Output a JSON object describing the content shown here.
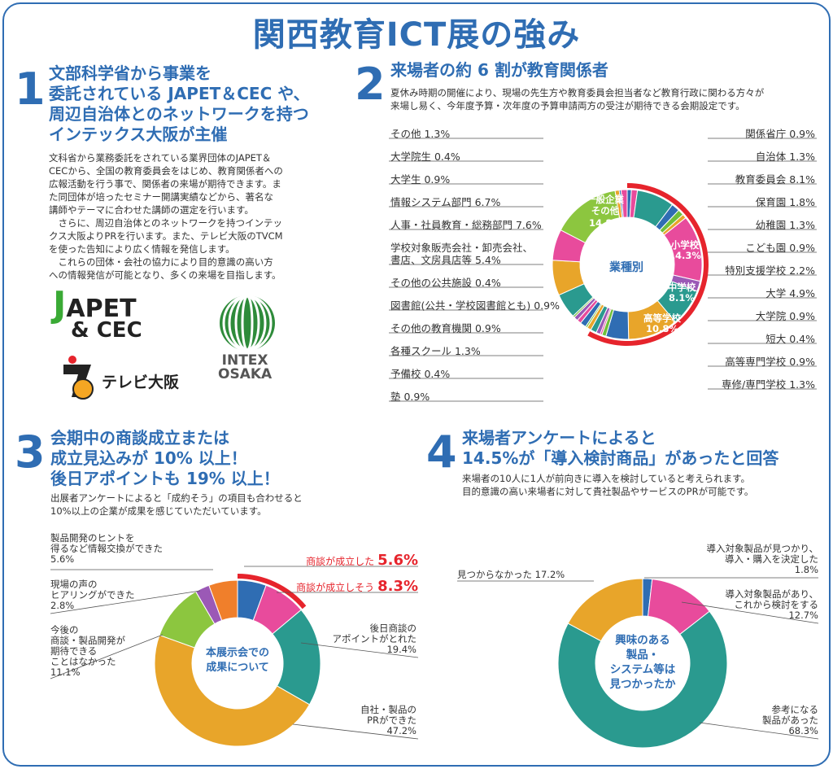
{
  "title": "関西教育ICT展の強み",
  "s1": {
    "num": "1",
    "head": [
      "文部科学省から事業を",
      "委託されている JAPET＆CEC や、",
      "周辺自治体とのネットワークを持つ",
      "インテックス大阪が主催"
    ],
    "body": [
      "文科省から業務委託をされている業界団体のJAPET＆",
      "CECから、全国の教育委員会をはじめ、教育関係者への",
      "広報活動を行う事で、関係者の来場が期待できます。ま",
      "た同団体が培ったセミナー開講実績などから、著名な",
      "講師やテーマに合わせた講師の選定を行います。",
      "　さらに、周辺自治体とのネットワークを持つインテッ",
      "クス大阪よりPRを行います。また、テレビ大阪のTVCM",
      "を使った告知により広く情報を発信します。",
      "　これらの団体・会社の協力により目的意識の高い方",
      "への情報発信が可能となり、多くの来場を目指します。"
    ],
    "logo_japet_1": "APET",
    "logo_japet_2": "& CEC",
    "logo_j": "J",
    "logo_intex": [
      "INTEX",
      "OSAKA"
    ],
    "logo_tv": "テレビ大阪"
  },
  "s2": {
    "num": "2",
    "head": "来場者の約 6 割が教育関係者",
    "body": [
      "夏休み時期の開催により、現場の先生方や教育委員会担当者など教育行政に関わる方々が",
      "来場し易く、今年度予算・次年度の予算申請両方の受注が期待できる会期設定です。"
    ],
    "center": "業種別"
  },
  "s3": {
    "num": "3",
    "head": [
      "会期中の商談成立または",
      "成立見込みが 10% 以上！",
      "後日アポイントも 19% 以上！"
    ],
    "body": [
      "出展者アンケートによると「成約そう」の項目も合わせると",
      "10%以上の企業が成果を感じていただいています。"
    ],
    "center": [
      "本展示会での",
      "成果について"
    ],
    "callout1_label": "商談が成立した",
    "callout1_value": "5.6%",
    "callout2_label": "商談が成立しそう",
    "callout2_value": "8.3%"
  },
  "s4": {
    "num": "4",
    "head": [
      "来場者アンケートによると",
      "14.5%が「導入検討商品」があったと回答"
    ],
    "body": [
      "来場者の10人に1人が前向きに導入を検討していると考えられます。",
      "目的意識の高い来場者に対して貴社製品やサービスのPRが可能です。"
    ],
    "center": [
      "興味のある",
      "製品・",
      "システム等は",
      "見つかったか"
    ]
  },
  "chart_data": [
    {
      "type": "pie",
      "title": "業種別",
      "slices": [
        {
          "label": "関係省庁",
          "value": 0.9,
          "color": "#2f6db3"
        },
        {
          "label": "自治体",
          "value": 1.3,
          "color": "#e84b9c"
        },
        {
          "label": "教育委員会",
          "value": 8.1,
          "color": "#2a9a8f"
        },
        {
          "label": "保育園",
          "value": 1.8,
          "color": "#2f6db3"
        },
        {
          "label": "幼稚園",
          "value": 1.3,
          "color": "#6fbf3a"
        },
        {
          "label": "こども園",
          "value": 0.9,
          "color": "#e8a52a"
        },
        {
          "label": "小学校",
          "value": 14.3,
          "color": "#e84b9c"
        },
        {
          "label": "特別支援学校",
          "value": 2.2,
          "color": "#9b59b6"
        },
        {
          "label": "中学校",
          "value": 8.1,
          "color": "#2a9a8f"
        },
        {
          "label": "高等学校",
          "value": 10.8,
          "color": "#e8a52a"
        },
        {
          "label": "大学",
          "value": 4.9,
          "color": "#2f6db3"
        },
        {
          "label": "大学院",
          "value": 0.9,
          "color": "#6fbf3a"
        },
        {
          "label": "短大",
          "value": 0.4,
          "color": "#e84b9c"
        },
        {
          "label": "高等専門学校",
          "value": 0.9,
          "color": "#9b59b6"
        },
        {
          "label": "専修/専門学校",
          "value": 1.3,
          "color": "#2a9a8f"
        },
        {
          "label": "塾",
          "value": 0.9,
          "color": "#e8a52a"
        },
        {
          "label": "予備校",
          "value": 0.4,
          "color": "#6fbf3a"
        },
        {
          "label": "各種スクール",
          "value": 1.3,
          "color": "#2f6db3"
        },
        {
          "label": "その他の教育機関",
          "value": 0.9,
          "color": "#e84b9c"
        },
        {
          "label": "図書館(公共・学校図書館とも)",
          "value": 0.9,
          "color": "#9b59b6"
        },
        {
          "label": "その他の公共施設",
          "value": 0.4,
          "color": "#6fbf3a"
        },
        {
          "label": "学校対象販売会社・卸売会社、書店、文房具店等",
          "value": 5.4,
          "color": "#2a9a8f"
        },
        {
          "label": "人事・社員教育・総務部門",
          "value": 7.6,
          "color": "#e8a52a"
        },
        {
          "label": "情報システム部門",
          "value": 6.7,
          "color": "#e84b9c"
        },
        {
          "label": "一般企業その他",
          "value": 14.8,
          "color": "#8cc63f"
        },
        {
          "label": "大学生",
          "value": 0.9,
          "color": "#e8a52a"
        },
        {
          "label": "大学院生",
          "value": 0.4,
          "color": "#2f6db3"
        },
        {
          "label": "その他",
          "value": 1.3,
          "color": "#e84b9c"
        }
      ],
      "right_labels": [
        "関係省庁 0.9%",
        "自治体 1.3%",
        "教育委員会 8.1%",
        "保育園 1.8%",
        "幼稚園 1.3%",
        "こども園 0.9%",
        "特別支援学校 2.2%",
        "大学 4.9%",
        "大学院 0.9%",
        "短大 0.4%",
        "高等専門学校 0.9%",
        "専修/専門学校 1.3%"
      ],
      "left_labels": [
        "その他 1.3%",
        "大学院生 0.4%",
        "大学生 0.9%",
        "情報システム部門 6.7%",
        "人事・社員教育・総務部門 7.6%",
        "学校対象販売会社・卸売会社、",
        "書店、文房具店等 5.4%",
        "その他の公共施設 0.4%",
        "図書館(公共・学校図書館とも) 0.9%",
        "その他の教育機関 0.9%",
        "各種スクール 1.3%",
        "予備校 0.4%",
        "塾 0.9%"
      ],
      "inner_labels": [
        "一般企業",
        "その他",
        "14.8%",
        "小学校",
        "14.3%",
        "中学校",
        "8.1%",
        "高等学校",
        "10.8%"
      ]
    },
    {
      "type": "pie",
      "title": "本展示会での成果について",
      "slices": [
        {
          "label": "商談が成立した",
          "value": 5.6,
          "color": "#2f6db3"
        },
        {
          "label": "商談が成立しそう",
          "value": 8.3,
          "color": "#e84b9c"
        },
        {
          "label": "後日商談のアポイントがとれた",
          "value": 19.4,
          "color": "#2a9a8f"
        },
        {
          "label": "自社・製品のPRができた",
          "value": 47.2,
          "color": "#e8a52a"
        },
        {
          "label": "今後の商談・製品開発が期待できることはなかった",
          "value": 11.1,
          "color": "#8cc63f"
        },
        {
          "label": "現場の声のヒアリングができた",
          "value": 2.8,
          "color": "#9b59b6"
        },
        {
          "label": "製品開発のヒントを得るなど情報交換ができた",
          "value": 5.6,
          "color": "#f07f2b"
        }
      ],
      "labels": {
        "hint": [
          "製品開発のヒントを",
          "得るなど情報交換ができた",
          "5.6%"
        ],
        "voice": [
          "現場の声の",
          "ヒアリングができた",
          "2.8%"
        ],
        "future": [
          "今後の",
          "商談・製品開発が",
          "期待できる",
          "ことはなかった",
          "11.1%"
        ],
        "appoint": [
          "後日商談の",
          "アポイントがとれた",
          "19.4%"
        ],
        "pr": [
          "自社・製品の",
          "PRができた",
          "47.2%"
        ]
      }
    },
    {
      "type": "pie",
      "title": "興味のある製品・システム等は見つかったか",
      "slices": [
        {
          "label": "導入対象製品が見つかり、導入・購入を決定した",
          "value": 1.8,
          "color": "#2f6db3"
        },
        {
          "label": "導入対象製品があり、これから検討をする",
          "value": 12.7,
          "color": "#e84b9c"
        },
        {
          "label": "参考になる製品があった",
          "value": 68.3,
          "color": "#2a9a8f"
        },
        {
          "label": "見つからなかった",
          "value": 17.2,
          "color": "#e8a52a"
        }
      ],
      "labels": {
        "decided": [
          "導入対象製品が見つかり、",
          "導入・購入を決定した",
          "1.8%"
        ],
        "consider": [
          "導入対象製品があり、",
          "これから検討をする",
          "12.7%"
        ],
        "ref": [
          "参考になる",
          "製品があった",
          "68.3%"
        ],
        "none": "見つからなかった 17.2%"
      }
    }
  ]
}
